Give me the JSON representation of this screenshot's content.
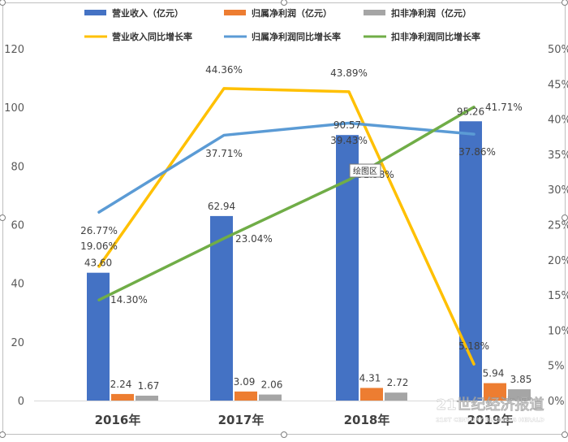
{
  "chart_data": {
    "type": "bar+line",
    "categories": [
      "2016年",
      "2017年",
      "2018年",
      "2019年"
    ],
    "bar_series": [
      {
        "name": "营业收入（亿元）",
        "values": [
          43.6,
          62.94,
          90.57,
          95.26
        ],
        "labels": [
          "43.60",
          "62.94",
          "90.57",
          "95.26"
        ],
        "color": "#4472C4"
      },
      {
        "name": "归属净利润（亿元）",
        "values": [
          2.24,
          3.09,
          4.31,
          5.94
        ],
        "labels": [
          "2.24",
          "3.09",
          "4.31",
          "5.94"
        ],
        "color": "#ED7D31"
      },
      {
        "name": "扣非净利润（亿元）",
        "values": [
          1.67,
          2.06,
          2.72,
          3.85
        ],
        "labels": [
          "1.67",
          "2.06",
          "2.72",
          "3.85"
        ],
        "color": "#A5A5A5"
      }
    ],
    "line_series": [
      {
        "name": "营业收入同比增长率",
        "values": [
          19.06,
          44.36,
          43.89,
          5.18
        ],
        "labels": [
          "19.06%",
          "44.36%",
          "43.89%",
          "5.18%"
        ],
        "color": "#FFC000"
      },
      {
        "name": "归属净利润同比增长率",
        "values": [
          26.77,
          37.71,
          39.43,
          37.86
        ],
        "labels": [
          "26.77%",
          "37.71%",
          "39.43%",
          "37.86%"
        ],
        "color": "#5B9BD5"
      },
      {
        "name": "扣非净利润同比增长率",
        "values": [
          14.3,
          23.04,
          31.38,
          41.71
        ],
        "labels": [
          "14.30%",
          "23.04%",
          "31.38%",
          "41.71%"
        ],
        "color": "#70AD47"
      }
    ],
    "y_left": {
      "min": 0,
      "max": 120,
      "step": 20,
      "ticks": [
        "0",
        "20",
        "40",
        "60",
        "80",
        "100",
        "120"
      ]
    },
    "y_right": {
      "min": 0,
      "max": 50,
      "step": 5,
      "ticks": [
        "0%",
        "5%",
        "10%",
        "15%",
        "20%",
        "25%",
        "30%",
        "35%",
        "40%",
        "45%",
        "50%"
      ]
    },
    "legend_position": "top",
    "grid": false,
    "tooltip": "绘图区"
  },
  "watermark": {
    "text": "21世纪经济报道",
    "sub": "21ST CENTURY BUSINESS HERALD"
  }
}
